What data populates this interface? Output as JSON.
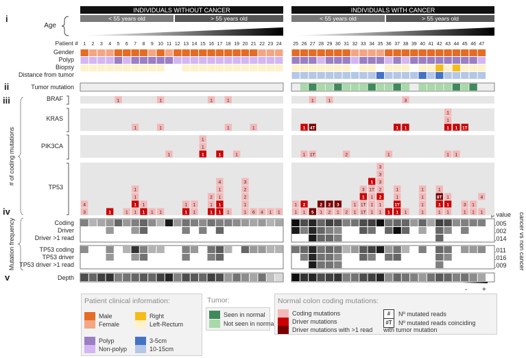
{
  "headers": {
    "without": "INDIVIDUALS WITHOUT CANCER",
    "with": "INDIVIDUALS WITH CANCER",
    "age_under": "< 55 years old",
    "age_over": "> 55 years old"
  },
  "section_numerals": [
    "i",
    "ii",
    "iii",
    "iv",
    "v"
  ],
  "row_labels": {
    "age": "Age",
    "patient": "Patient #",
    "gender": "Gender",
    "polyp": "Polyp",
    "biopsy": "Biopsy",
    "distance": "Distance from tumor",
    "tumor_mutation": "Tumor mutation",
    "braf": "BRAF",
    "kras": "KRAS",
    "pik3ca": "PIK3CA",
    "tp53": "TP53",
    "n_coding": "# of coding mutations",
    "mut_freq": "Mutation frequency",
    "coding": "Coding",
    "driver": "Driver",
    "driver_gt1": "Driver >1 read",
    "tp53_coding": "TP53 coding",
    "tp53_driver": "TP53 driver",
    "tp53_driver_gt1": "TP53 driver >1 read",
    "depth": "Depth",
    "pvalue": "p value",
    "cancer_vs": "cancer vs non cancer",
    "scale_minus": "-",
    "scale_plus": "+"
  },
  "pvalues": [
    "0.005",
    "0.002",
    "0.014",
    "0.011",
    "0.016",
    "0.009"
  ],
  "patients_without": [
    1,
    2,
    3,
    4,
    5,
    6,
    7,
    8,
    9,
    10,
    11,
    12,
    13,
    14,
    15,
    16,
    17,
    18,
    19,
    20,
    21,
    22,
    23,
    24
  ],
  "patients_with": [
    25,
    26,
    27,
    28,
    29,
    30,
    31,
    32,
    33,
    34,
    35,
    36,
    37,
    38,
    39,
    40,
    41,
    42,
    43,
    44,
    45,
    46,
    47
  ],
  "legend": {
    "clinical_title": "Patient clinical information:",
    "male": "Male",
    "female": "Female",
    "right": "Right",
    "left_rectum": "Left-Rectum",
    "polyp": "Polyp",
    "non_polyp": "Non-polyp",
    "d3_5": "3-5cm",
    "d10_15": "10-15cm",
    "tumor_title": "Tumor:",
    "seen": "Seen in normal",
    "not_seen": "Not seen in normal",
    "normal_title": "Normal colon coding mutations:",
    "coding_mut": "Coding mutations",
    "driver_mut": "Driver mutations",
    "driver_gt1_mut": "Driver mutations with >1 read",
    "code_hash": "#",
    "code_hash_t": "#T",
    "n_reads": "Nº mutated reads",
    "n_reads_coinc": "Nº mutated reads coinciding",
    "n_reads_coinc2": "with tumor mutation"
  },
  "colors": {
    "male": "#e46c25",
    "female": "#f4a683",
    "polyp": "#9b7fc4",
    "non_polyp": "#d3b6f2",
    "right": "#f6bd1a",
    "left_rectum": "#fff1c9",
    "d3_5": "#4472c4",
    "d10_15": "#b4c7e7",
    "seen": "#3f8a5a",
    "not_seen": "#a8d9a9",
    "coding": "#f4b8b8",
    "driver": "#cc0000",
    "driver_gt1": "#7a0000",
    "empty": "#e6e6e6"
  },
  "mutations": {
    "BRAF": [
      {
        "p": 5,
        "v": "1",
        "c": "coding"
      },
      {
        "p": 10,
        "v": "1",
        "c": "coding"
      },
      {
        "p": 16,
        "v": "1",
        "c": "coding"
      },
      {
        "p": 18,
        "v": "1",
        "c": "coding"
      },
      {
        "p": 27,
        "v": "1",
        "c": "coding"
      },
      {
        "p": 29,
        "v": "1",
        "c": "coding"
      },
      {
        "p": 38,
        "v": "3",
        "c": "coding"
      }
    ],
    "KRAS": [
      {
        "p": 7,
        "v": "1",
        "c": "coding"
      },
      {
        "p": 10,
        "v": "1",
        "c": "coding"
      },
      {
        "p": 18,
        "v": "1",
        "c": "coding"
      },
      {
        "p": 21,
        "v": "1",
        "c": "coding"
      },
      {
        "p": 26,
        "v": "1",
        "c": "driver"
      },
      {
        "p": 27,
        "v": "4T",
        "c": "driver_gt1"
      },
      {
        "p": 37,
        "v": "1",
        "c": "driver"
      },
      {
        "p": 38,
        "v": "1",
        "c": "driver"
      },
      {
        "p": 43,
        "v": "1",
        "c": "driver"
      },
      {
        "p": 44,
        "v": "1",
        "c": "driver"
      },
      {
        "p": 45,
        "v": "1T",
        "c": "driver"
      },
      {
        "p": 43,
        "v": "1",
        "c": "coding",
        "r": 1
      },
      {
        "p": 43,
        "v": "1",
        "c": "coding",
        "r": 2
      }
    ],
    "PIK3CA": [
      {
        "p": 11,
        "v": "1",
        "c": "coding"
      },
      {
        "p": 15,
        "v": "1",
        "c": "driver"
      },
      {
        "p": 15,
        "v": "1",
        "c": "coding",
        "r": 1
      },
      {
        "p": 15,
        "v": "1",
        "c": "coding",
        "r": 2
      },
      {
        "p": 17,
        "v": "1",
        "c": "driver"
      },
      {
        "p": 19,
        "v": "1",
        "c": "coding"
      },
      {
        "p": 26,
        "v": "1",
        "c": "coding"
      },
      {
        "p": 27,
        "v": "1T",
        "c": "coding"
      },
      {
        "p": 31,
        "v": "2",
        "c": "coding"
      },
      {
        "p": 36,
        "v": "1",
        "c": "coding"
      },
      {
        "p": 43,
        "v": "1",
        "c": "coding"
      },
      {
        "p": 44,
        "v": "1",
        "c": "coding"
      }
    ],
    "TP53": [
      {
        "p": 1,
        "v": "3",
        "c": "coding"
      },
      {
        "p": 1,
        "v": "4",
        "c": "coding",
        "r": 1
      },
      {
        "p": 4,
        "v": "1",
        "c": "driver"
      },
      {
        "p": 6,
        "v": "1",
        "c": "coding"
      },
      {
        "p": 7,
        "v": "1",
        "c": "coding"
      },
      {
        "p": 7,
        "v": "1",
        "c": "driver",
        "r": 1
      },
      {
        "p": 7,
        "v": "1",
        "c": "coding",
        "r": 2
      },
      {
        "p": 7,
        "v": "1",
        "c": "coding",
        "r": 3
      },
      {
        "p": 8,
        "v": "1",
        "c": "driver"
      },
      {
        "p": 8,
        "v": "1",
        "c": "coding",
        "r": 1
      },
      {
        "p": 9,
        "v": "1",
        "c": "coding"
      },
      {
        "p": 10,
        "v": "1",
        "c": "coding"
      },
      {
        "p": 13,
        "v": "1",
        "c": "driver"
      },
      {
        "p": 13,
        "v": "1",
        "c": "coding",
        "r": 1
      },
      {
        "p": 14,
        "v": "1",
        "c": "coding"
      },
      {
        "p": 14,
        "v": "1",
        "c": "coding",
        "r": 1
      },
      {
        "p": 16,
        "v": "1",
        "c": "driver"
      },
      {
        "p": 16,
        "v": "1",
        "c": "coding",
        "r": 1
      },
      {
        "p": 16,
        "v": "2",
        "c": "coding",
        "r": 2
      },
      {
        "p": 17,
        "v": "1",
        "c": "driver"
      },
      {
        "p": 17,
        "v": "1",
        "c": "driver",
        "r": 1
      },
      {
        "p": 17,
        "v": "1",
        "c": "coding",
        "r": 2
      },
      {
        "p": 17,
        "v": "1",
        "c": "coding",
        "r": 3
      },
      {
        "p": 17,
        "v": "4",
        "c": "coding",
        "r": 4
      },
      {
        "p": 18,
        "v": "1",
        "c": "coding"
      },
      {
        "p": 20,
        "v": "1",
        "c": "coding"
      },
      {
        "p": 20,
        "v": "1",
        "c": "coding",
        "r": 1
      },
      {
        "p": 20,
        "v": "2",
        "c": "coding",
        "r": 2
      },
      {
        "p": 20,
        "v": "2",
        "c": "coding",
        "r": 3
      },
      {
        "p": 20,
        "v": "3",
        "c": "coding",
        "r": 4
      },
      {
        "p": 21,
        "v": "6",
        "c": "coding"
      },
      {
        "p": 22,
        "v": "4",
        "c": "coding"
      },
      {
        "p": 23,
        "v": "1",
        "c": "coding"
      },
      {
        "p": 24,
        "v": "1",
        "c": "coding"
      },
      {
        "p": 25,
        "v": "1",
        "c": "coding"
      },
      {
        "p": 25,
        "v": "1",
        "c": "coding",
        "r": 1
      },
      {
        "p": 26,
        "v": "1",
        "c": "coding"
      },
      {
        "p": 26,
        "v": "2",
        "c": "driver",
        "r": 1
      },
      {
        "p": 27,
        "v": "5",
        "c": "driver_gt1"
      },
      {
        "p": 28,
        "v": "1",
        "c": "coding"
      },
      {
        "p": 28,
        "v": "2",
        "c": "driver_gt1",
        "r": 1
      },
      {
        "p": 29,
        "v": "2",
        "c": "coding"
      },
      {
        "p": 29,
        "v": "2",
        "c": "driver_gt1",
        "r": 1
      },
      {
        "p": 30,
        "v": "1",
        "c": "coding"
      },
      {
        "p": 30,
        "v": "3",
        "c": "driver_gt1",
        "r": 1
      },
      {
        "p": 31,
        "v": "2",
        "c": "coding"
      },
      {
        "p": 32,
        "v": "1",
        "c": "coding"
      },
      {
        "p": 32,
        "v": "1",
        "c": "coding",
        "r": 1
      },
      {
        "p": 33,
        "v": "1T",
        "c": "coding"
      },
      {
        "p": 33,
        "v": "1T",
        "c": "coding",
        "r": 1
      },
      {
        "p": 33,
        "v": "1",
        "c": "driver",
        "r": 2
      },
      {
        "p": 33,
        "v": "3",
        "c": "coding",
        "r": 3
      },
      {
        "p": 34,
        "v": "1",
        "c": "coding"
      },
      {
        "p": 34,
        "v": "1",
        "c": "coding",
        "r": 1
      },
      {
        "p": 34,
        "v": "1",
        "c": "coding",
        "r": 2
      },
      {
        "p": 34,
        "v": "1T",
        "c": "coding",
        "r": 3
      },
      {
        "p": 34,
        "v": "1",
        "c": "driver",
        "r": 4
      },
      {
        "p": 35,
        "v": "1",
        "c": "coding"
      },
      {
        "p": 35,
        "v": "1",
        "c": "coding",
        "r": 1
      },
      {
        "p": 35,
        "v": "2",
        "c": "driver",
        "r": 2
      },
      {
        "p": 35,
        "v": "2",
        "c": "coding",
        "r": 3
      },
      {
        "p": 35,
        "v": "3",
        "c": "coding",
        "r": 4
      },
      {
        "p": 35,
        "v": "3",
        "c": "coding",
        "r": 5
      },
      {
        "p": 35,
        "v": "3",
        "c": "coding",
        "r": 6
      },
      {
        "p": 36,
        "v": "1",
        "c": "driver"
      },
      {
        "p": 37,
        "v": "1",
        "c": "driver"
      },
      {
        "p": 37,
        "v": "1T",
        "c": "driver",
        "r": 1
      },
      {
        "p": 37,
        "v": "1",
        "c": "coding",
        "r": 2
      },
      {
        "p": 37,
        "v": "1",
        "c": "coding",
        "r": 3
      },
      {
        "p": 38,
        "v": "1",
        "c": "coding"
      },
      {
        "p": 40,
        "v": "1",
        "c": "coding"
      },
      {
        "p": 40,
        "v": "1",
        "c": "coding",
        "r": 1
      },
      {
        "p": 40,
        "v": "1",
        "c": "coding",
        "r": 2
      },
      {
        "p": 40,
        "v": "1",
        "c": "coding",
        "r": 3
      },
      {
        "p": 42,
        "v": "1",
        "c": "coding"
      },
      {
        "p": 42,
        "v": "1",
        "c": "driver",
        "r": 1
      },
      {
        "p": 42,
        "v": "8T",
        "c": "driver_gt1",
        "r": 2
      },
      {
        "p": 42,
        "v": "1",
        "c": "coding",
        "r": 3
      },
      {
        "p": 43,
        "v": "1",
        "c": "coding"
      },
      {
        "p": 43,
        "v": "1",
        "c": "driver",
        "r": 1
      },
      {
        "p": 43,
        "v": "1",
        "c": "coding",
        "r": 2
      },
      {
        "p": 45,
        "v": "1",
        "c": "coding"
      },
      {
        "p": 45,
        "v": "3",
        "c": "coding",
        "r": 1
      },
      {
        "p": 46,
        "v": "1",
        "c": "coding"
      },
      {
        "p": 46,
        "v": "1",
        "c": "coding",
        "r": 1
      },
      {
        "p": 47,
        "v": "1",
        "c": "coding"
      },
      {
        "p": 47,
        "v": "4",
        "c": "coding",
        "r": 2
      }
    ]
  }
}
